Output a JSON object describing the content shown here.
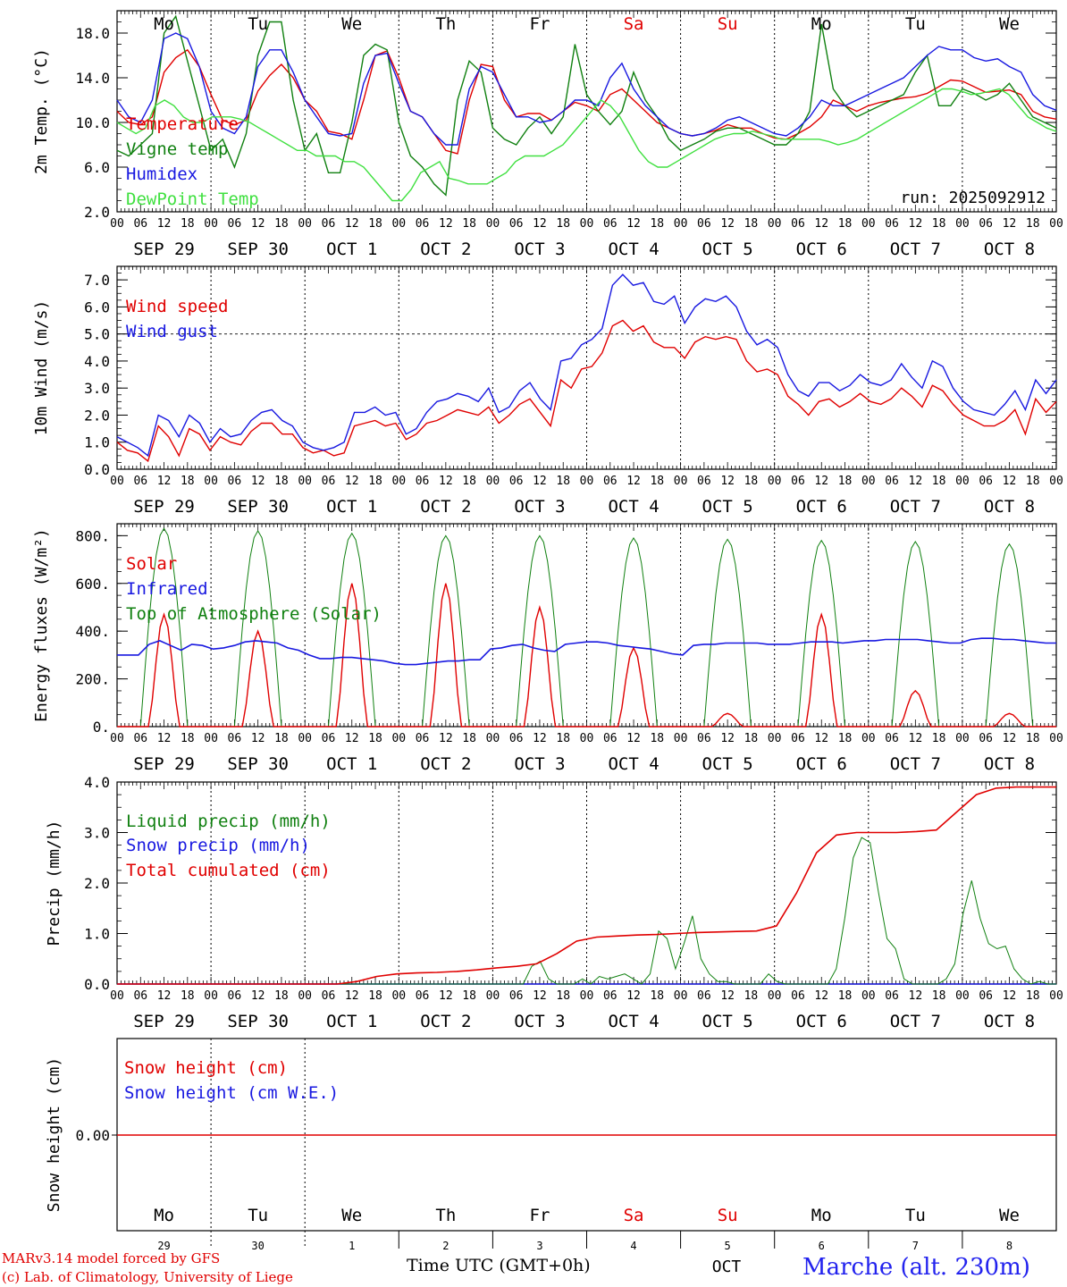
{
  "run_label": "run: 2025092912",
  "hour_ticks": [
    "00",
    "06",
    "12",
    "18"
  ],
  "dates": [
    "SEP 29",
    "SEP 30",
    "OCT  1",
    "OCT  2",
    "OCT  3",
    "OCT  4",
    "OCT  5",
    "OCT  6",
    "OCT  7",
    "OCT  8"
  ],
  "weekdays": [
    {
      "label": "Mo",
      "color": "#000000"
    },
    {
      "label": "Tu",
      "color": "#000000"
    },
    {
      "label": "We",
      "color": "#000000"
    },
    {
      "label": "Th",
      "color": "#000000"
    },
    {
      "label": "Fr",
      "color": "#000000"
    },
    {
      "label": "Sa",
      "color": "#e00000"
    },
    {
      "label": "Su",
      "color": "#e00000"
    },
    {
      "label": "Mo",
      "color": "#000000"
    },
    {
      "label": "Tu",
      "color": "#000000"
    },
    {
      "label": "We",
      "color": "#000000"
    }
  ],
  "day_numbers": [
    "29",
    "30",
    "1",
    "2",
    "3",
    "4",
    "5",
    "6",
    "7",
    "8"
  ],
  "footer": {
    "model": "MARv3.14 model forced by GFS",
    "credit": "(c) Lab. of Climatology, University of Liege",
    "time_label": "Time UTC (GMT+0h)",
    "month_label": "OCT",
    "station": "Marche (alt. 230m)"
  },
  "chart_data": [
    {
      "type": "line",
      "ylabel": "2m Temp. (°C)",
      "ylim": [
        2,
        20
      ],
      "yticks": [
        2,
        6,
        10,
        14,
        18
      ],
      "ytick_labels": [
        "2.0",
        "6.0",
        "10.0",
        "14.0",
        "18.0"
      ],
      "series": [
        {
          "name": "Temperature",
          "color": "#e00000",
          "values": [
            11,
            10,
            9.8,
            10.5,
            14.5,
            15.8,
            16.5,
            15,
            12.5,
            10.2,
            9.8,
            10.2,
            12.8,
            14.2,
            15.2,
            14,
            12,
            11,
            9.2,
            9,
            8.5,
            12,
            16,
            16.4,
            14,
            11,
            10.5,
            9,
            7.5,
            7.2,
            12,
            15.2,
            15,
            12,
            10.5,
            10.8,
            10.8,
            10.2,
            11,
            11.8,
            11.5,
            11,
            12.5,
            13,
            12,
            11,
            10,
            9.5,
            9,
            8.8,
            9,
            9.3,
            9.8,
            9.5,
            9.5,
            9,
            8.6,
            8.5,
            9,
            9.6,
            10.5,
            12,
            11.5,
            11,
            11.5,
            11.8,
            12,
            12.2,
            12.3,
            12.6,
            13.2,
            13.8,
            13.7,
            13.2,
            12.7,
            12.8,
            12.9,
            12.5,
            11,
            10.5,
            10.3
          ]
        },
        {
          "name": "Vigne temp",
          "color": "#108010",
          "values": [
            7.5,
            7,
            8,
            9,
            18,
            19.5,
            15.5,
            11.5,
            7.5,
            8.5,
            6,
            9,
            16,
            19,
            19,
            12,
            7.5,
            9,
            5.5,
            5.5,
            10,
            16,
            17,
            16.5,
            10,
            7,
            6,
            4.5,
            3.5,
            12,
            15.5,
            14.5,
            9.5,
            8.5,
            8,
            9.5,
            10.5,
            9,
            10.5,
            17,
            12.5,
            11,
            9.8,
            11,
            14.5,
            12,
            10.5,
            8.5,
            7.5,
            8,
            8.5,
            9.2,
            9.5,
            9.5,
            9,
            8.5,
            8,
            8,
            9,
            11,
            18.8,
            13,
            11.5,
            10.5,
            11,
            11.5,
            12,
            12.5,
            14.5,
            16,
            11.5,
            11.5,
            13,
            12.6,
            12,
            12.5,
            13.5,
            12,
            10.5,
            10,
            9.5
          ]
        },
        {
          "name": "Humidex",
          "color": "#1818e0",
          "values": [
            12,
            10.5,
            10,
            12,
            17.5,
            18,
            17.5,
            15,
            11,
            9.5,
            9,
            10.5,
            15,
            16.5,
            16.5,
            14.5,
            12,
            10.5,
            9,
            8.8,
            9,
            13.5,
            16,
            16.2,
            13.5,
            11,
            10.5,
            9,
            8,
            8,
            13,
            15,
            14.5,
            12.5,
            10.5,
            10.5,
            10,
            10.2,
            11,
            12,
            12,
            11.5,
            14,
            15.3,
            13,
            11.5,
            10.5,
            9.5,
            9,
            8.8,
            9,
            9.5,
            10.2,
            10.5,
            10,
            9.5,
            9,
            8.8,
            9.5,
            10.5,
            12,
            11.5,
            11.5,
            12,
            12.5,
            13,
            13.5,
            14,
            15,
            16,
            16.8,
            16.5,
            16.5,
            15.8,
            15.5,
            15.7,
            15,
            14.5,
            12.5,
            11.5,
            11.1
          ]
        },
        {
          "name": "DewPoint Temp",
          "color": "#40e040",
          "values": [
            10,
            9.5,
            9,
            9.5,
            11.5,
            12,
            11.5,
            10.5,
            10,
            10,
            10.5,
            10.5,
            10.5,
            10.3,
            10,
            9.5,
            9,
            8.5,
            8,
            7.5,
            7.5,
            7,
            7,
            7,
            6.5,
            6.5,
            6,
            5,
            4,
            3,
            3,
            4,
            5.5,
            6,
            6.5,
            5,
            4.8,
            4.5,
            4.5,
            4.5,
            5,
            5.5,
            6.5,
            7,
            7,
            7,
            7.5,
            8,
            9,
            10,
            11,
            12,
            11.5,
            10.5,
            9,
            7.5,
            6.5,
            6,
            6,
            6.5,
            7,
            7.5,
            8,
            8.5,
            8.8,
            9,
            9,
            9.2,
            9,
            8.8,
            8.5,
            8.5,
            8.5,
            8.5,
            8.5,
            8.3,
            8,
            8.2,
            8.5,
            9,
            9.5,
            10,
            10.5,
            11,
            11.5,
            12,
            12.5,
            13,
            13,
            12.8,
            12.5,
            12.6,
            12.8,
            13,
            12.5,
            11.5,
            10.5,
            10,
            9.5,
            9.2
          ]
        }
      ],
      "annotations": [
        "run: 2025092912"
      ]
    },
    {
      "type": "line",
      "ylabel": "10m Wind (m/s)",
      "ylim": [
        0,
        7.5
      ],
      "yticks": [
        0,
        1,
        2,
        3,
        4,
        5,
        6,
        7
      ],
      "ytick_labels": [
        "0.0",
        "1.0",
        "2.0",
        "3.0",
        "4.0",
        "5.0",
        "6.0",
        "7.0"
      ],
      "reference_line": 5.0,
      "series": [
        {
          "name": "Wind speed",
          "color": "#e00000",
          "values": [
            1,
            0.7,
            0.6,
            0.3,
            1.6,
            1.2,
            0.5,
            1.5,
            1.3,
            0.7,
            1.2,
            1,
            0.9,
            1.4,
            1.7,
            1.7,
            1.3,
            1.3,
            0.8,
            0.6,
            0.7,
            0.5,
            0.6,
            1.6,
            1.7,
            1.8,
            1.6,
            1.7,
            1.1,
            1.3,
            1.7,
            1.8,
            2,
            2.2,
            2.1,
            2,
            2.3,
            1.7,
            2,
            2.4,
            2.6,
            2.1,
            1.6,
            3.3,
            3,
            3.7,
            3.8,
            4.3,
            5.3,
            5.5,
            5.1,
            5.3,
            4.7,
            4.5,
            4.5,
            4.1,
            4.7,
            4.9,
            4.8,
            4.9,
            4.8,
            4,
            3.6,
            3.7,
            3.5,
            2.7,
            2.4,
            2,
            2.5,
            2.6,
            2.3,
            2.5,
            2.8,
            2.5,
            2.4,
            2.6,
            3,
            2.7,
            2.3,
            3.1,
            2.9,
            2.4,
            2,
            1.8,
            1.6,
            1.6,
            1.8,
            2.2,
            1.3,
            2.6,
            2.1,
            2.5
          ]
        },
        {
          "name": "Wind gust",
          "color": "#1818e0",
          "values": [
            1.2,
            1,
            0.8,
            0.5,
            2,
            1.8,
            1.2,
            2,
            1.7,
            1,
            1.5,
            1.2,
            1.3,
            1.8,
            2.1,
            2.2,
            1.8,
            1.6,
            1,
            0.8,
            0.7,
            0.8,
            1,
            2.1,
            2.1,
            2.3,
            2,
            2.1,
            1.3,
            1.5,
            2.1,
            2.5,
            2.6,
            2.8,
            2.7,
            2.5,
            3,
            2.1,
            2.3,
            2.9,
            3.2,
            2.6,
            2.2,
            4,
            4.1,
            4.6,
            4.8,
            5.2,
            6.8,
            7.2,
            6.8,
            6.9,
            6.2,
            6.1,
            6.4,
            5.4,
            6,
            6.3,
            6.2,
            6.4,
            6,
            5.1,
            4.6,
            4.8,
            4.5,
            3.5,
            2.9,
            2.7,
            3.2,
            3.2,
            2.9,
            3.1,
            3.5,
            3.2,
            3.1,
            3.3,
            3.9,
            3.4,
            3,
            4,
            3.8,
            3,
            2.5,
            2.2,
            2.1,
            2,
            2.4,
            2.9,
            2.2,
            3.3,
            2.8,
            3.3
          ]
        }
      ]
    },
    {
      "type": "line",
      "ylabel": "Energy fluxes (W/m²)",
      "ylim": [
        0,
        850
      ],
      "yticks": [
        0,
        200,
        400,
        600,
        800
      ],
      "ytick_labels": [
        "0.",
        "200.",
        "400.",
        "600.",
        "800."
      ],
      "series": [
        {
          "name": "Solar",
          "color": "#e00000",
          "peaks_by_day": [
            470,
            400,
            600,
            600,
            500,
            330,
            55,
            470,
            150,
            55
          ]
        },
        {
          "name": "Infrared",
          "color": "#1818e0",
          "values": [
            300,
            300,
            300,
            345,
            360,
            340,
            320,
            345,
            340,
            325,
            330,
            340,
            355,
            360,
            355,
            350,
            330,
            320,
            300,
            285,
            285,
            290,
            290,
            285,
            280,
            275,
            265,
            260,
            260,
            265,
            270,
            275,
            275,
            280,
            280,
            325,
            330,
            340,
            345,
            330,
            320,
            315,
            345,
            350,
            355,
            355,
            350,
            340,
            335,
            330,
            325,
            315,
            305,
            300,
            340,
            345,
            345,
            350,
            350,
            350,
            350,
            345,
            345,
            345,
            350,
            355,
            355,
            355,
            350,
            355,
            360,
            360,
            365,
            365,
            365,
            365,
            360,
            355,
            350,
            350,
            365,
            370,
            370,
            365,
            365,
            360,
            355,
            350,
            350
          ]
        },
        {
          "name": "Top of Atmosphere (Solar)",
          "color": "#108010",
          "peaks_by_day": [
            830,
            820,
            810,
            800,
            800,
            790,
            785,
            780,
            775,
            765
          ]
        }
      ]
    },
    {
      "type": "line",
      "ylabel": "Precip (mm/h)",
      "ylim": [
        0,
        4
      ],
      "yticks": [
        0,
        1,
        2,
        3,
        4
      ],
      "ytick_labels": [
        "0.0",
        "1.0",
        "2.0",
        "3.0",
        "4.0"
      ],
      "series": [
        {
          "name": "Liquid precip (mm/h)",
          "color": "#108010",
          "values": [
            0,
            0,
            0,
            0,
            0,
            0,
            0,
            0,
            0,
            0,
            0,
            0,
            0,
            0,
            0,
            0,
            0,
            0,
            0,
            0,
            0,
            0,
            0,
            0,
            0,
            0,
            0,
            0,
            0,
            0,
            0,
            0,
            0,
            0,
            0,
            0,
            0,
            0,
            0,
            0,
            0,
            0,
            0,
            0,
            0,
            0,
            0,
            0,
            0,
            0.35,
            0.45,
            0.1,
            0,
            0,
            0,
            0.1,
            0,
            0.15,
            0.1,
            0.15,
            0.2,
            0.1,
            0,
            0.2,
            1.05,
            0.9,
            0.3,
            0.8,
            1.35,
            0.5,
            0.2,
            0.05,
            0.05,
            0,
            0,
            0,
            0,
            0.2,
            0.05,
            0,
            0,
            0,
            0,
            0,
            0,
            0.3,
            1.3,
            2.5,
            2.9,
            2.8,
            1.8,
            0.9,
            0.7,
            0.1,
            0,
            0,
            0,
            0,
            0.1,
            0.4,
            1.4,
            2.05,
            1.3,
            0.8,
            0.7,
            0.75,
            0.3,
            0.1,
            0,
            0.05,
            0,
            0
          ]
        },
        {
          "name": "Snow precip (mm/h)",
          "color": "#1818e0",
          "values": [
            0,
            0
          ]
        },
        {
          "name": "Total cumulated (cm)",
          "color": "#e00000",
          "values": [
            0,
            0,
            0,
            0,
            0,
            0,
            0,
            0,
            0,
            0,
            0,
            0,
            0.05,
            0.15,
            0.2,
            0.22,
            0.23,
            0.25,
            0.28,
            0.32,
            0.35,
            0.4,
            0.6,
            0.85,
            0.93,
            0.95,
            0.97,
            0.98,
            1.0,
            1.02,
            1.03,
            1.04,
            1.05,
            1.15,
            1.8,
            2.6,
            2.95,
            3.0,
            3.0,
            3.0,
            3.02,
            3.05,
            3.4,
            3.75,
            3.88,
            3.9,
            3.9,
            3.9
          ]
        }
      ]
    },
    {
      "type": "line",
      "ylabel": "Snow height (cm)",
      "ytick_labels": [
        "0.00"
      ],
      "series": [
        {
          "name": "Snow height (cm)",
          "color": "#e00000",
          "values": [
            0,
            0
          ]
        },
        {
          "name": "Snow height (cm W.E.)",
          "color": "#1818e0",
          "values": [
            0,
            0
          ]
        }
      ]
    }
  ]
}
